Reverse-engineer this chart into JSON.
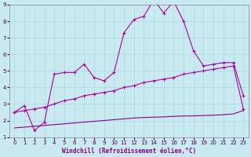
{
  "xlabel": "Windchill (Refroidissement éolien,°C)",
  "xlim": [
    -0.5,
    23.5
  ],
  "ylim": [
    1,
    9
  ],
  "xticks": [
    0,
    1,
    2,
    3,
    4,
    5,
    6,
    7,
    8,
    9,
    10,
    11,
    12,
    13,
    14,
    15,
    16,
    17,
    18,
    19,
    20,
    21,
    22,
    23
  ],
  "yticks": [
    1,
    2,
    3,
    4,
    5,
    6,
    7,
    8,
    9
  ],
  "background_color": "#c8eaf0",
  "grid_color": "#a8d8e0",
  "line_color1": "#aa00aa",
  "line_color2": "#aa00aa",
  "line_color3": "#880088",
  "line1_x": [
    0,
    1,
    2,
    3,
    4,
    5,
    6,
    7,
    8,
    9,
    10,
    11,
    12,
    13,
    14,
    15,
    16,
    17,
    18,
    19,
    20,
    21,
    22,
    23
  ],
  "line1_y": [
    2.5,
    2.9,
    1.4,
    1.9,
    4.8,
    4.9,
    4.9,
    5.4,
    4.6,
    4.4,
    4.9,
    7.3,
    8.1,
    8.3,
    9.3,
    8.5,
    9.2,
    8.0,
    6.2,
    5.3,
    5.4,
    5.5,
    5.5,
    3.5
  ],
  "line2_x": [
    0,
    1,
    2,
    3,
    4,
    5,
    6,
    7,
    8,
    9,
    10,
    11,
    12,
    13,
    14,
    15,
    16,
    17,
    18,
    19,
    20,
    21,
    22,
    23
  ],
  "line2_y": [
    2.5,
    2.6,
    2.7,
    2.8,
    3.0,
    3.2,
    3.3,
    3.5,
    3.6,
    3.7,
    3.8,
    4.0,
    4.1,
    4.3,
    4.4,
    4.5,
    4.6,
    4.8,
    4.9,
    5.0,
    5.1,
    5.2,
    5.3,
    2.7
  ],
  "line3_x": [
    0,
    1,
    2,
    3,
    4,
    5,
    6,
    7,
    8,
    9,
    10,
    11,
    12,
    13,
    14,
    15,
    16,
    17,
    18,
    19,
    20,
    21,
    22,
    23
  ],
  "line3_y": [
    1.55,
    1.6,
    1.65,
    1.7,
    1.75,
    1.8,
    1.85,
    1.9,
    1.95,
    2.0,
    2.05,
    2.1,
    2.15,
    2.18,
    2.2,
    2.22,
    2.25,
    2.27,
    2.28,
    2.3,
    2.32,
    2.35,
    2.4,
    2.6
  ]
}
